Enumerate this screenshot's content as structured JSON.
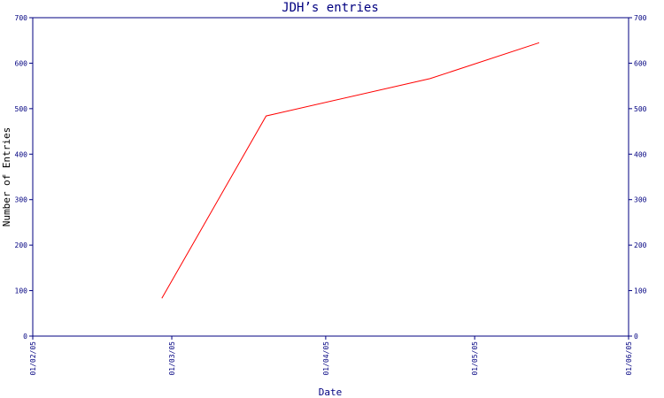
{
  "chart_data": {
    "type": "line",
    "title": "JDH’s entries",
    "xlabel": "Date",
    "ylabel": "Number of Entries",
    "x_ticks": [
      "01/02/05",
      "01/03/05",
      "01/04/05",
      "01/05/05",
      "01/06/05"
    ],
    "y_ticks": [
      "0",
      "100",
      "200",
      "300",
      "400",
      "500",
      "600",
      "700"
    ],
    "ylim": [
      0,
      700
    ],
    "xlim": [
      "2005-02-01",
      "2005-06-01"
    ],
    "grid": false,
    "series": [
      {
        "color": "#ff0000",
        "points": [
          {
            "x": "2005-02-27",
            "y": 83
          },
          {
            "x": "2005-03-20",
            "y": 484
          },
          {
            "x": "2005-04-22",
            "y": 566
          },
          {
            "x": "2005-05-14",
            "y": 645
          }
        ]
      }
    ]
  },
  "colors": {
    "axis": "#000080",
    "title": "#000080",
    "label": "#000000",
    "line": "#ff0000"
  }
}
